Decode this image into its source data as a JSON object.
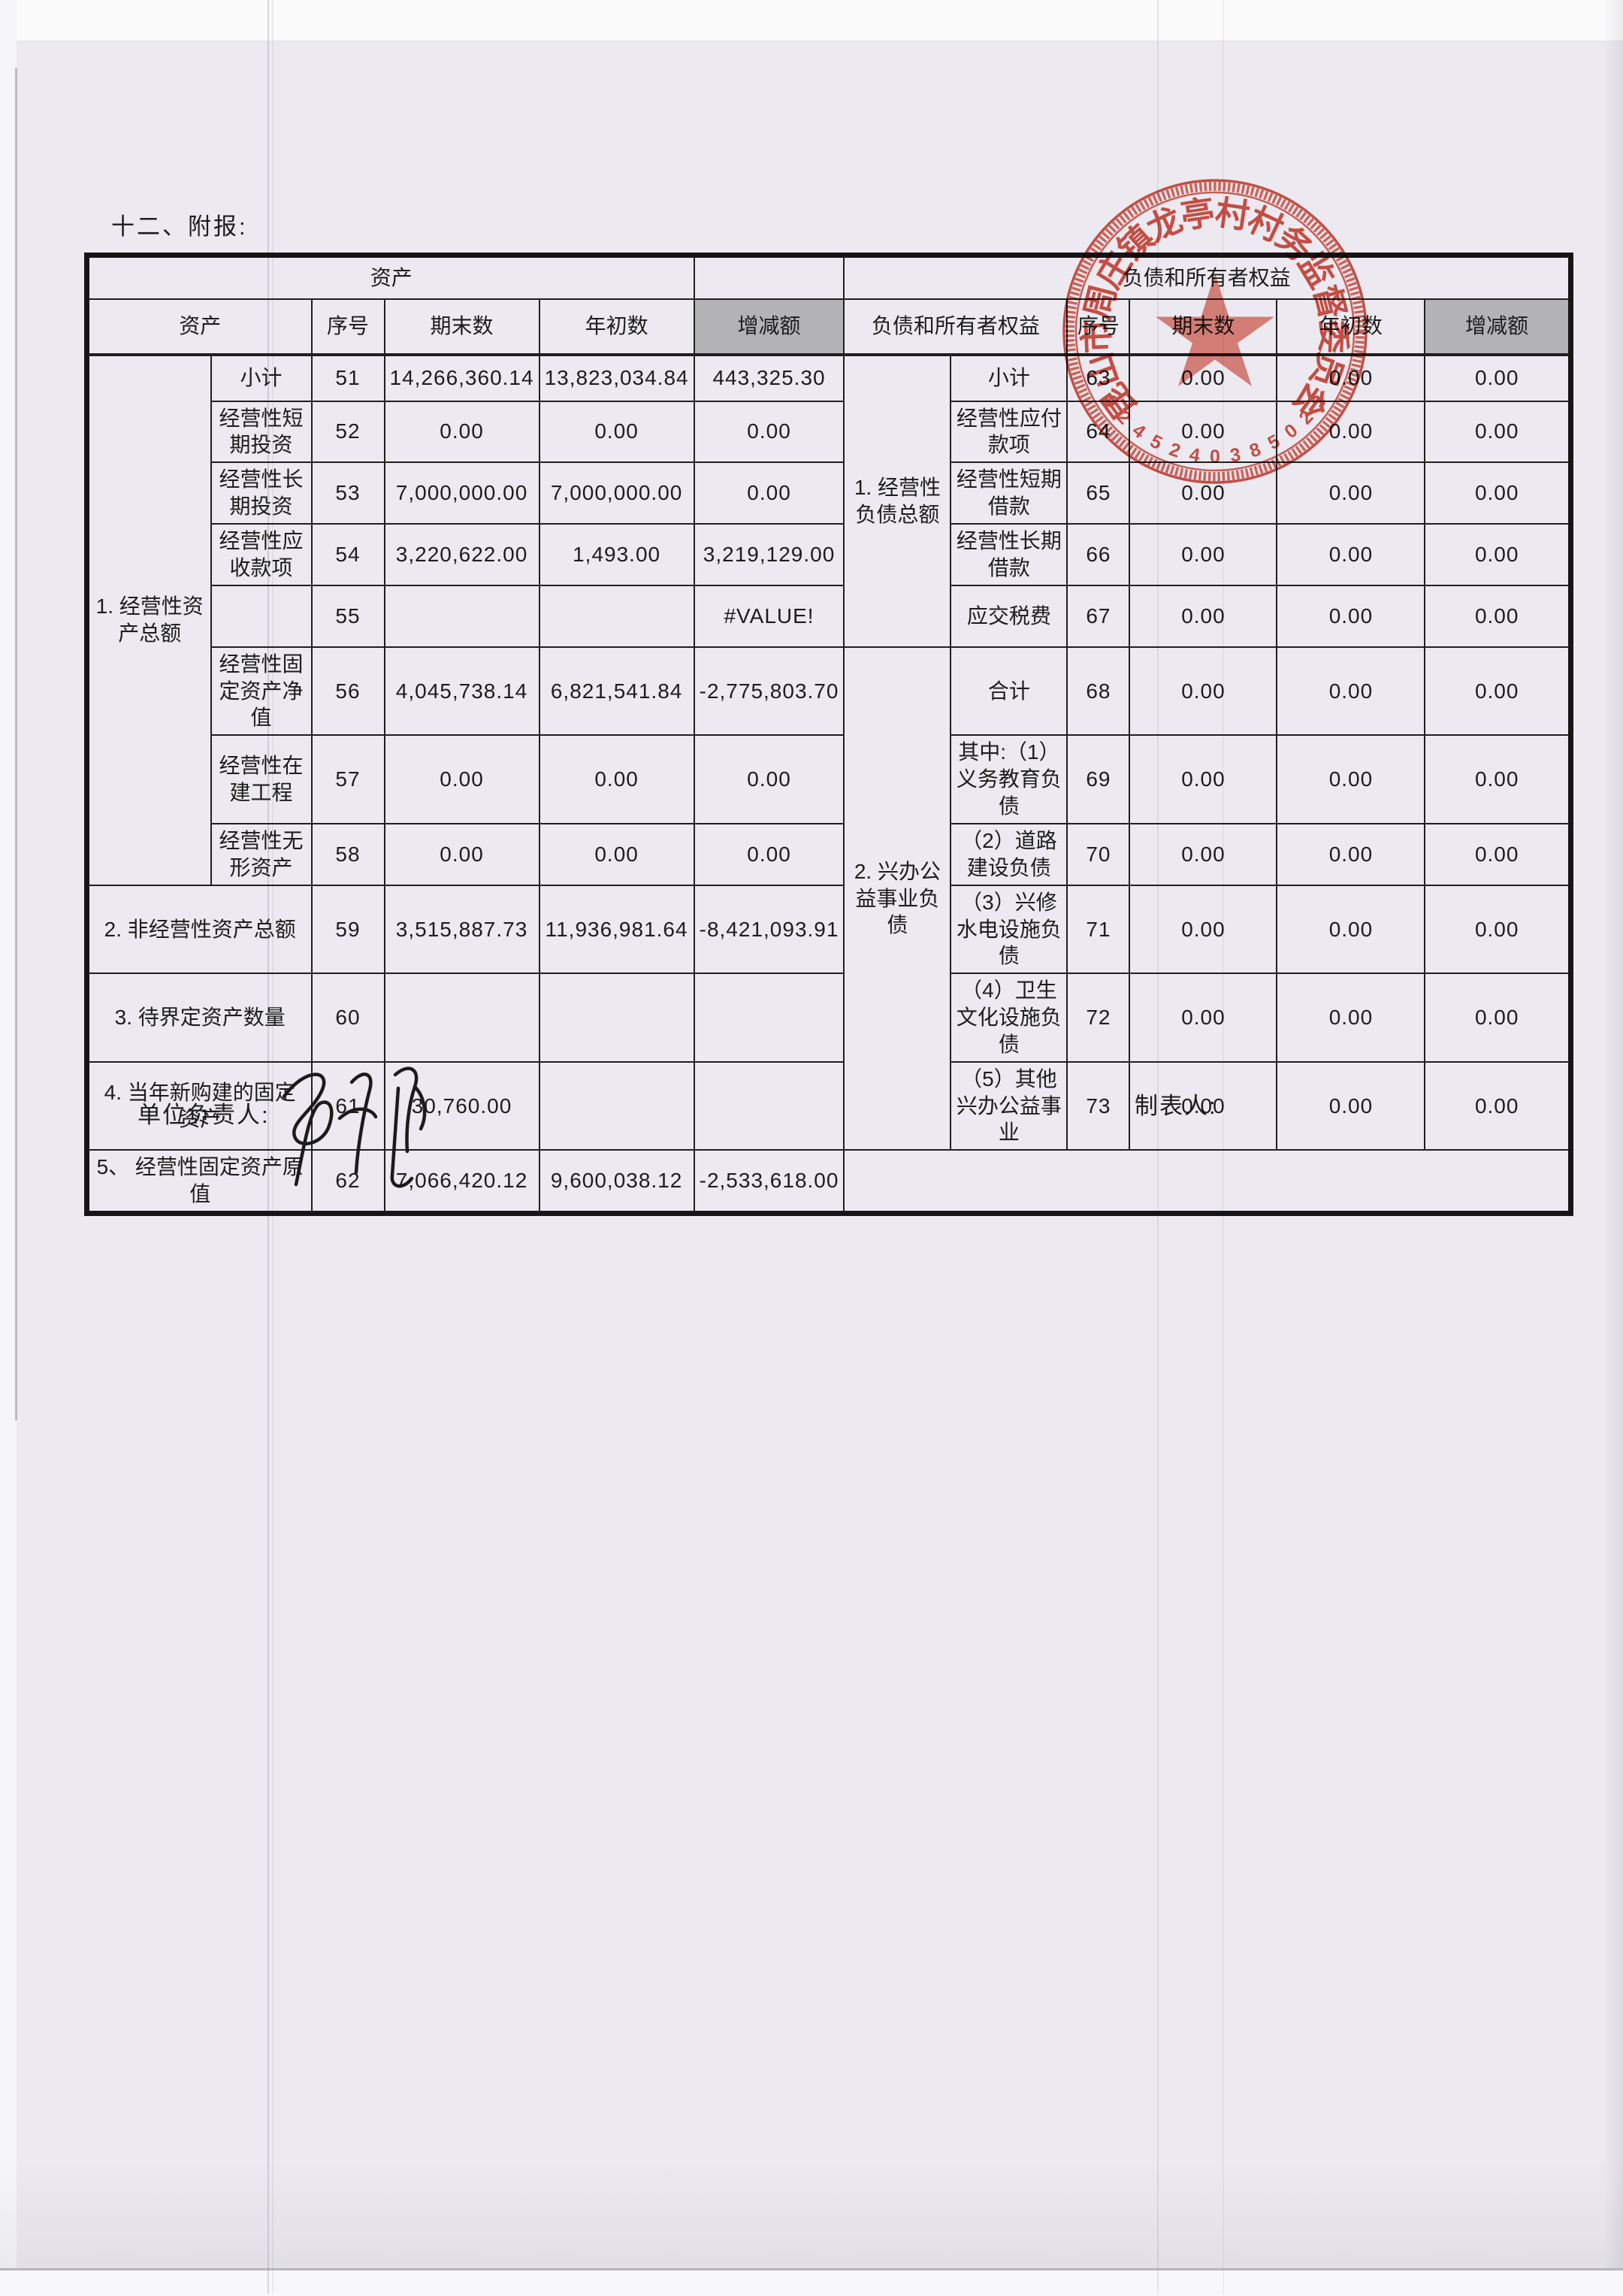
{
  "page": {
    "section_title": "十二、附报:",
    "footer": {
      "unit_head_label": "单位负责人:",
      "preparer_label": "制表人:"
    }
  },
  "table": {
    "top_header": {
      "assets": "资产",
      "liabilities": "负债和所有者权益"
    },
    "col_headers": {
      "assets": "资产",
      "liabilities": "负债和所有者权益",
      "seq": "序号",
      "ending": "期末数",
      "beginning": "年初数",
      "change": "增减额"
    },
    "groups": {
      "asset_g1": "1. 经营性资产总额",
      "liab_g1": "1. 经营性负债总额",
      "liab_g2": "2. 兴办公益事业负债"
    },
    "rows": [
      {
        "al": "小计",
        "an": "51",
        "ae": "14,266,360.14",
        "ab": "13,823,034.84",
        "ac": "443,325.30",
        "ll": "小计",
        "ln": "63",
        "le": "0.00",
        "lb": "0.00",
        "lc": "0.00"
      },
      {
        "al": "经营性短期投资",
        "an": "52",
        "ae": "0.00",
        "ab": "0.00",
        "ac": "0.00",
        "ll": "经营性应付款项",
        "ln": "64",
        "le": "0.00",
        "lb": "0.00",
        "lc": "0.00"
      },
      {
        "al": "经营性长期投资",
        "an": "53",
        "ae": "7,000,000.00",
        "ab": "7,000,000.00",
        "ac": "0.00",
        "ll": "经营性短期借款",
        "ln": "65",
        "le": "0.00",
        "lb": "0.00",
        "lc": "0.00"
      },
      {
        "al": "经营性应收款项",
        "an": "54",
        "ae": "3,220,622.00",
        "ab": "1,493.00",
        "ac": "3,219,129.00",
        "ll": "经营性长期借款",
        "ln": "66",
        "le": "0.00",
        "lb": "0.00",
        "lc": "0.00"
      },
      {
        "al": "",
        "an": "55",
        "ae": "",
        "ab": "",
        "ac": "#VALUE!",
        "ll": "应交税费",
        "ln": "67",
        "le": "0.00",
        "lb": "0.00",
        "lc": "0.00"
      },
      {
        "al": "经营性固定资产净值",
        "an": "56",
        "ae": "4,045,738.14",
        "ab": "6,821,541.84",
        "ac": "-2,775,803.70",
        "ll": "合计",
        "ln": "68",
        "le": "0.00",
        "lb": "0.00",
        "lc": "0.00"
      },
      {
        "al": "经营性在建工程",
        "an": "57",
        "ae": "0.00",
        "ab": "0.00",
        "ac": "0.00",
        "ll": "其中:（1）义务教育负债",
        "ln": "69",
        "le": "0.00",
        "lb": "0.00",
        "lc": "0.00"
      },
      {
        "al": "经营性无形资产",
        "an": "58",
        "ae": "0.00",
        "ab": "0.00",
        "ac": "0.00",
        "ll": "（2）道路建设负债",
        "ln": "70",
        "le": "0.00",
        "lb": "0.00",
        "lc": "0.00"
      },
      {
        "al": "2. 非经营性资产总额",
        "an": "59",
        "ae": "3,515,887.73",
        "ab": "11,936,981.64",
        "ac": "-8,421,093.91",
        "ll": "（3）兴修水电设施负债",
        "ln": "71",
        "le": "0.00",
        "lb": "0.00",
        "lc": "0.00"
      },
      {
        "al": "3. 待界定资产数量",
        "an": "60",
        "ae": "",
        "ab": "",
        "ac": "",
        "ll": "（4）卫生文化设施负债",
        "ln": "72",
        "le": "0.00",
        "lb": "0.00",
        "lc": "0.00"
      },
      {
        "al": "4. 当年新购建的固定资产",
        "an": "61",
        "ae": "30,760.00",
        "ab": "",
        "ac": "",
        "ll": "（5）其他兴办公益事业",
        "ln": "73",
        "le": "0.00",
        "lb": "0.00",
        "lc": "0.00"
      },
      {
        "al": "5、 经营性固定资产原值",
        "an": "62",
        "ae": "7,066,420.12",
        "ab": "9,600,038.12",
        "ac": "-2,533,618.00"
      }
    ]
  },
  "stamp": {
    "arc_text": "昆山市周庄镇龙亭村村务监督委员会",
    "code": "3205830425429",
    "color": "#cf4639"
  },
  "colors": {
    "header_shade": "#b3b3b6",
    "table_line": "#1f1f1f",
    "paper": "#eceaf0",
    "ink": "#1c1c1c"
  }
}
